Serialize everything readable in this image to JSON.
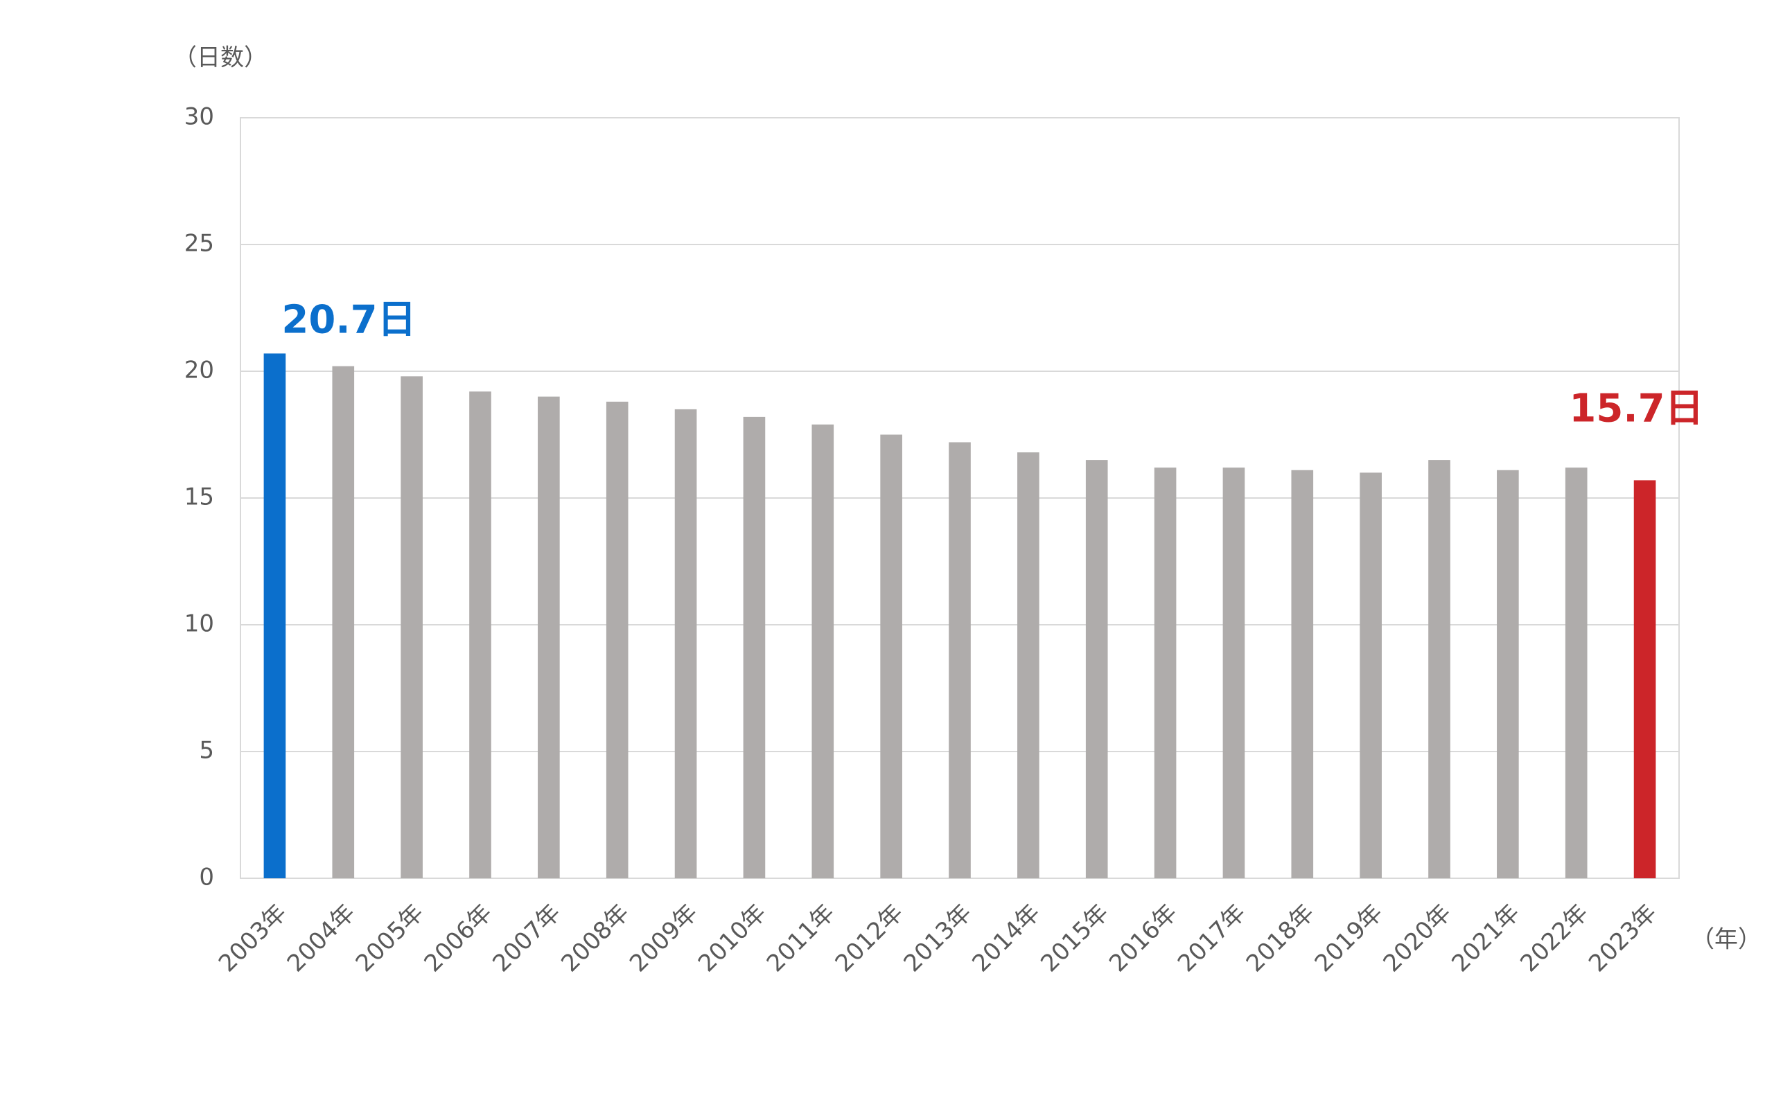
{
  "chart_data": {
    "type": "bar",
    "y_axis_label": "（日数）",
    "x_axis_label": "（年）",
    "categories": [
      "2003年",
      "2004年",
      "2005年",
      "2006年",
      "2007年",
      "2008年",
      "2009年",
      "2010年",
      "2011年",
      "2012年",
      "2013年",
      "2014年",
      "2015年",
      "2016年",
      "2017年",
      "2018年",
      "2019年",
      "2020年",
      "2021年",
      "2022年",
      "2023年"
    ],
    "values": [
      20.7,
      20.2,
      19.8,
      19.2,
      19.0,
      18.8,
      18.5,
      18.2,
      17.9,
      17.5,
      17.2,
      16.8,
      16.5,
      16.2,
      16.2,
      16.1,
      16.0,
      16.5,
      16.1,
      16.2,
      15.7
    ],
    "value_labels": [
      "20.7日",
      null,
      null,
      null,
      null,
      null,
      null,
      null,
      null,
      null,
      null,
      null,
      null,
      null,
      null,
      null,
      null,
      null,
      null,
      null,
      "15.7日"
    ],
    "colors": [
      "#0b6fcc",
      "#afacab",
      "#afacab",
      "#afacab",
      "#afacab",
      "#afacab",
      "#afacab",
      "#afacab",
      "#afacab",
      "#afacab",
      "#afacab",
      "#afacab",
      "#afacab",
      "#afacab",
      "#afacab",
      "#afacab",
      "#afacab",
      "#afacab",
      "#afacab",
      "#afacab",
      "#cc2529"
    ],
    "ylim": [
      0,
      30
    ],
    "yticks": [
      0,
      5,
      10,
      15,
      20,
      25,
      30
    ],
    "grid": true
  }
}
